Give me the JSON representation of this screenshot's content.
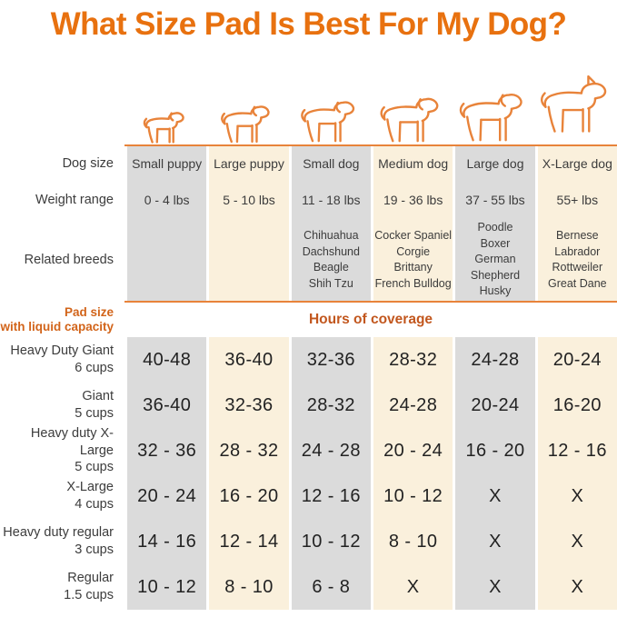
{
  "title": "What Size Pad Is Best For My Dog?",
  "colors": {
    "title_orange": "#E8710F",
    "accent_orange": "#C2571E",
    "pad_label_orange": "#D2641A",
    "divider_orange": "#E8833A",
    "stripe_gray": "#DBDBDB",
    "stripe_cream": "#FAF0DC"
  },
  "attribute_labels": {
    "dog_size": "Dog size",
    "weight_range": "Weight range",
    "related_breeds": "Related breeds"
  },
  "band": {
    "pad_size_line1": "Pad size",
    "pad_size_line2": "with liquid capacity",
    "hours_label": "Hours of coverage"
  },
  "columns": [
    {
      "name": "Small puppy",
      "weight": "0 - 4 lbs",
      "breeds": []
    },
    {
      "name": "Large puppy",
      "weight": "5 - 10 lbs",
      "breeds": []
    },
    {
      "name": "Small dog",
      "weight": "11 - 18 lbs",
      "breeds": [
        "Chihuahua",
        "Dachshund",
        "Beagle",
        "Shih Tzu"
      ]
    },
    {
      "name": "Medium dog",
      "weight": "19 - 36 lbs",
      "breeds": [
        "Cocker Spaniel",
        "Corgie",
        "Brittany",
        "French Bulldog"
      ]
    },
    {
      "name": "Large dog",
      "weight": "37 - 55 lbs",
      "breeds": [
        "Poodle",
        "Boxer",
        "German Shepherd",
        "Husky"
      ]
    },
    {
      "name": "X-Large dog",
      "weight": "55+ lbs",
      "breeds": [
        "Bernese",
        "Labrador",
        "Rottweiler",
        "Great Dane"
      ]
    }
  ],
  "pad_rows": [
    {
      "name": "Heavy Duty Giant",
      "capacity": "6 cups",
      "values": [
        "40-48",
        "36-40",
        "32-36",
        "28-32",
        "24-28",
        "20-24"
      ]
    },
    {
      "name": "Giant",
      "capacity": "5 cups",
      "values": [
        "36-40",
        "32-36",
        "28-32",
        "24-28",
        "20-24",
        "16-20"
      ]
    },
    {
      "name": "Heavy duty X-Large",
      "capacity": "5 cups",
      "values": [
        "32 - 36",
        "28 - 32",
        "24 - 28",
        "20 - 24",
        "16 - 20",
        "12 - 16"
      ]
    },
    {
      "name": "X-Large",
      "capacity": "4 cups",
      "values": [
        "20 - 24",
        "16 - 20",
        "12 - 16",
        "10 - 12",
        "X",
        "X"
      ]
    },
    {
      "name": "Heavy duty regular",
      "capacity": "3 cups",
      "values": [
        "14 - 16",
        "12 - 14",
        "10 - 12",
        "8 - 10",
        "X",
        "X"
      ]
    },
    {
      "name": "Regular",
      "capacity": "1.5 cups",
      "values": [
        "10 - 12",
        "8 - 10",
        "6 - 8",
        "X",
        "X",
        "X"
      ]
    }
  ],
  "chart_data": {
    "type": "table",
    "title": "What Size Pad Is Best For My Dog?",
    "columns": [
      "Small puppy",
      "Large puppy",
      "Small dog",
      "Medium dog",
      "Large dog",
      "X-Large dog"
    ],
    "weight_ranges": [
      "0 - 4 lbs",
      "5 - 10 lbs",
      "11 - 18 lbs",
      "19 - 36 lbs",
      "37 - 55 lbs",
      "55+ lbs"
    ],
    "related_breeds": [
      [],
      [],
      [
        "Chihuahua",
        "Dachshund",
        "Beagle",
        "Shih Tzu"
      ],
      [
        "Cocker Spaniel",
        "Corgie",
        "Brittany",
        "French Bulldog"
      ],
      [
        "Poodle",
        "Boxer",
        "German Shepherd",
        "Husky"
      ],
      [
        "Bernese",
        "Labrador",
        "Rottweiler",
        "Great Dane"
      ]
    ],
    "value_unit": "Hours of coverage",
    "not_recommended_marker": "X",
    "rows": [
      {
        "pad": "Heavy Duty Giant",
        "capacity": "6 cups",
        "hours_of_coverage": [
          "40-48",
          "36-40",
          "32-36",
          "28-32",
          "24-28",
          "20-24"
        ]
      },
      {
        "pad": "Giant",
        "capacity": "5 cups",
        "hours_of_coverage": [
          "36-40",
          "32-36",
          "28-32",
          "24-28",
          "20-24",
          "16-20"
        ]
      },
      {
        "pad": "Heavy duty X-Large",
        "capacity": "5 cups",
        "hours_of_coverage": [
          "32 - 36",
          "28 - 32",
          "24 - 28",
          "20 - 24",
          "16 - 20",
          "12 - 16"
        ]
      },
      {
        "pad": "X-Large",
        "capacity": "4 cups",
        "hours_of_coverage": [
          "20 - 24",
          "16 - 20",
          "12 - 16",
          "10 - 12",
          "X",
          "X"
        ]
      },
      {
        "pad": "Heavy duty regular",
        "capacity": "3 cups",
        "hours_of_coverage": [
          "14 - 16",
          "12 - 14",
          "10 - 12",
          "8 - 10",
          "X",
          "X"
        ]
      },
      {
        "pad": "Regular",
        "capacity": "1.5 cups",
        "hours_of_coverage": [
          "10 - 12",
          "8 - 10",
          "6 - 8",
          "X",
          "X",
          "X"
        ]
      }
    ]
  }
}
